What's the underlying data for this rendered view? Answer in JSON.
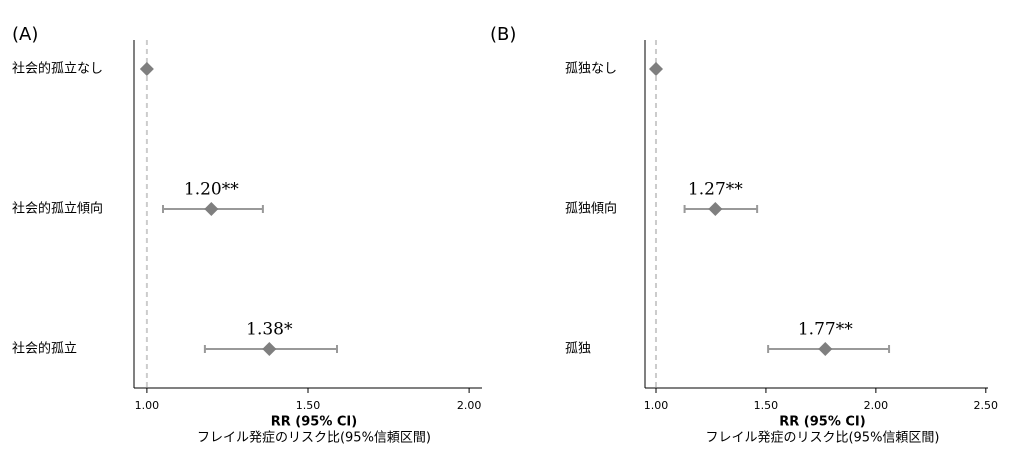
{
  "chart_data": [
    {
      "type": "forest",
      "title": "(A)",
      "categories": [
        "社会的孤立なし",
        "社会的孤立傾向",
        "社会的孤立"
      ],
      "values": [
        1.0,
        1.2,
        1.38
      ],
      "value_labels": [
        null,
        "1.20**",
        "1.38*"
      ],
      "ci_lower": [
        null,
        1.05,
        1.18
      ],
      "ci_upper": [
        null,
        1.36,
        1.59
      ],
      "color": "#7f7f7f",
      "reference_line": 1,
      "xlim": [
        0.96,
        2.04
      ],
      "xticks": [
        {
          "value": 1,
          "label": "1.00"
        },
        {
          "value": 1.5,
          "label": "1.50"
        },
        {
          "value": 2,
          "label": "2.00"
        }
      ],
      "xlabel": "RR (95% CI)",
      "xlabel_note": "フレイル発症のリスク比(95%信頼区間)"
    },
    {
      "type": "forest",
      "title": "(B)",
      "categories": [
        "孤独なし",
        "孤独傾向",
        "孤独"
      ],
      "values": [
        1.0,
        1.27,
        1.77
      ],
      "value_labels": [
        null,
        "1.27**",
        "1.77**"
      ],
      "ci_lower": [
        null,
        1.13,
        1.51
      ],
      "ci_upper": [
        null,
        1.46,
        2.06
      ],
      "color": "#7f7f7f",
      "reference_line": 1,
      "xlim": [
        0.95,
        2.51
      ],
      "xticks": [
        {
          "value": 1,
          "label": "1.00"
        },
        {
          "value": 1.5,
          "label": "1.50"
        },
        {
          "value": 2,
          "label": "2.00"
        },
        {
          "value": 2.5,
          "label": "2.50"
        }
      ],
      "xlabel": "RR (95% CI)",
      "xlabel_note": "フレイル発症のリスク比(95%信頼区間)"
    }
  ]
}
